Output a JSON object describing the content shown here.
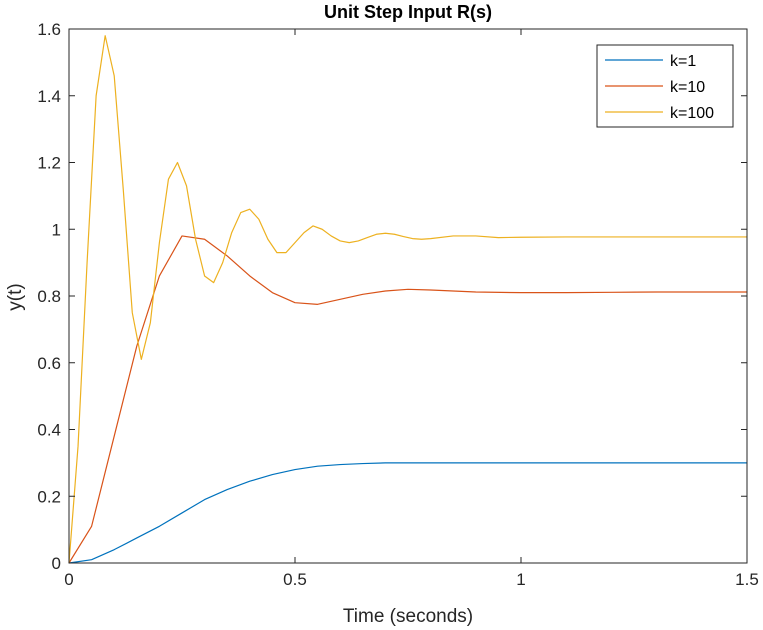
{
  "chart_data": {
    "type": "line",
    "title": "Unit Step Input R(s)",
    "xlabel": "Time (seconds)",
    "ylabel": "y(t)",
    "xlim": [
      0,
      1.5
    ],
    "ylim": [
      0,
      1.6
    ],
    "xticks": [
      0,
      0.5,
      1,
      1.5
    ],
    "xtick_labels": [
      "0",
      "0.5",
      "1",
      "1.5"
    ],
    "yticks": [
      0,
      0.2,
      0.4,
      0.6,
      0.8,
      1.0,
      1.2,
      1.4,
      1.6
    ],
    "ytick_labels": [
      "0",
      "0.2",
      "0.4",
      "0.6",
      "0.8",
      "1",
      "1.2",
      "1.4",
      "1.6"
    ],
    "grid": false,
    "legend_position": "top-right",
    "series": [
      {
        "name": "k=1",
        "color": "#0072BD",
        "x": [
          0,
          0.05,
          0.1,
          0.15,
          0.2,
          0.25,
          0.3,
          0.35,
          0.4,
          0.45,
          0.5,
          0.55,
          0.6,
          0.65,
          0.7,
          0.8,
          0.9,
          1.0,
          1.1,
          1.2,
          1.3,
          1.4,
          1.5
        ],
        "y": [
          0,
          0.01,
          0.04,
          0.075,
          0.11,
          0.15,
          0.19,
          0.22,
          0.245,
          0.265,
          0.28,
          0.29,
          0.295,
          0.298,
          0.3,
          0.3,
          0.3,
          0.3,
          0.3,
          0.3,
          0.3,
          0.3,
          0.3
        ]
      },
      {
        "name": "k=10",
        "color": "#D95319",
        "x": [
          0,
          0.05,
          0.1,
          0.15,
          0.2,
          0.25,
          0.3,
          0.35,
          0.4,
          0.45,
          0.5,
          0.55,
          0.6,
          0.65,
          0.7,
          0.75,
          0.8,
          0.9,
          1.0,
          1.1,
          1.2,
          1.3,
          1.4,
          1.5
        ],
        "y": [
          0,
          0.11,
          0.38,
          0.65,
          0.86,
          0.98,
          0.97,
          0.92,
          0.86,
          0.81,
          0.78,
          0.775,
          0.79,
          0.805,
          0.815,
          0.82,
          0.818,
          0.812,
          0.81,
          0.81,
          0.811,
          0.812,
          0.812,
          0.812
        ]
      },
      {
        "name": "k=100",
        "color": "#EDB120",
        "x": [
          0,
          0.02,
          0.04,
          0.06,
          0.08,
          0.1,
          0.12,
          0.14,
          0.16,
          0.18,
          0.2,
          0.22,
          0.24,
          0.26,
          0.28,
          0.3,
          0.32,
          0.34,
          0.36,
          0.38,
          0.4,
          0.42,
          0.44,
          0.46,
          0.48,
          0.5,
          0.52,
          0.54,
          0.56,
          0.58,
          0.6,
          0.62,
          0.64,
          0.66,
          0.68,
          0.7,
          0.72,
          0.74,
          0.76,
          0.78,
          0.8,
          0.85,
          0.9,
          0.95,
          1.0,
          1.1,
          1.2,
          1.3,
          1.4,
          1.5
        ],
        "y": [
          0,
          0.35,
          0.9,
          1.4,
          1.58,
          1.46,
          1.12,
          0.75,
          0.61,
          0.72,
          0.96,
          1.15,
          1.2,
          1.13,
          0.97,
          0.86,
          0.84,
          0.9,
          0.99,
          1.05,
          1.06,
          1.03,
          0.97,
          0.93,
          0.93,
          0.96,
          0.99,
          1.01,
          1.0,
          0.98,
          0.965,
          0.96,
          0.965,
          0.975,
          0.985,
          0.988,
          0.985,
          0.978,
          0.972,
          0.97,
          0.972,
          0.98,
          0.98,
          0.975,
          0.976,
          0.977,
          0.977,
          0.977,
          0.977,
          0.977
        ]
      }
    ]
  }
}
